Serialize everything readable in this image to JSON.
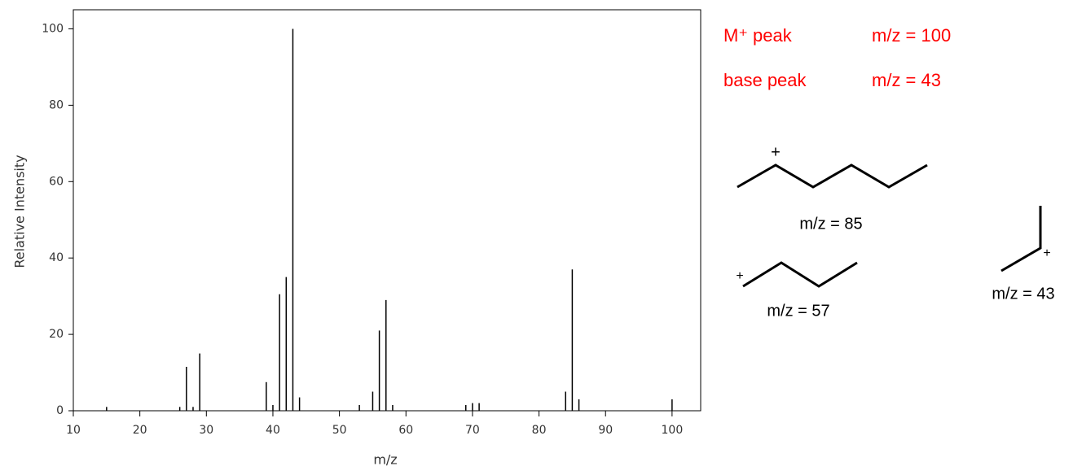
{
  "chart_data": {
    "type": "bar",
    "x_label": "m/z",
    "y_label": "Relative Intensity",
    "x": [
      15,
      26,
      27,
      28,
      29,
      39,
      40,
      41,
      42,
      43,
      44,
      53,
      55,
      56,
      57,
      58,
      69,
      70,
      71,
      84,
      85,
      86,
      100
    ],
    "values": [
      1,
      1,
      11.5,
      1,
      15,
      7.5,
      1.5,
      30.5,
      35,
      100,
      3.5,
      1.5,
      5,
      21,
      29,
      1.5,
      1.5,
      2,
      2,
      5,
      37,
      3,
      3
    ],
    "color": "#000000",
    "xlim": [
      10,
      104.3
    ],
    "xticks": [
      10,
      20,
      30,
      40,
      50,
      60,
      70,
      80,
      90,
      100
    ],
    "ylim": [
      0,
      105
    ],
    "yticks": [
      0,
      20,
      40,
      60,
      80,
      100
    ]
  },
  "annotations": [
    {
      "label": "M⁺ peak",
      "value": "m/z = 100"
    },
    {
      "label": "base peak",
      "value": "m/z = 43"
    }
  ],
  "structures": [
    {
      "charge": "+",
      "label": "m/z = 85"
    },
    {
      "charge": "+",
      "label": "m/z = 57"
    },
    {
      "charge": "+",
      "label": "m/z = 43"
    }
  ]
}
